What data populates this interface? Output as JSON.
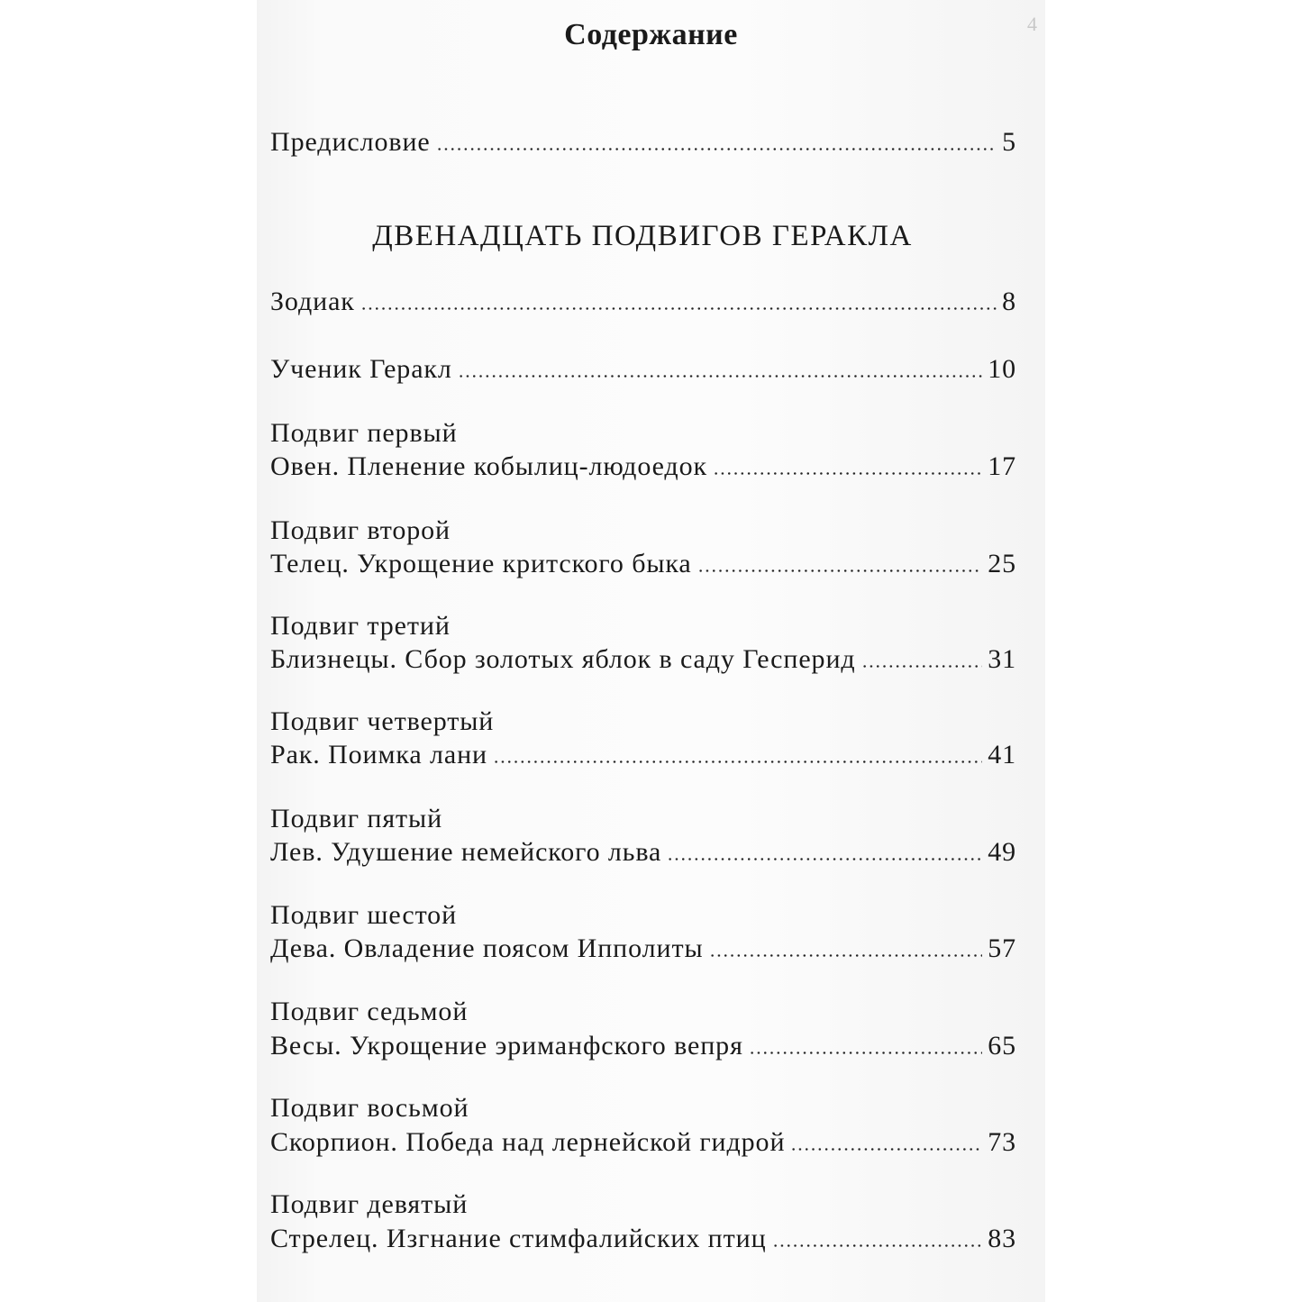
{
  "page_number": "4",
  "title": "Содержание",
  "section_title": "ДВЕНАДЦАТЬ ПОДВИГОВ ГЕРАКЛА",
  "entries": [
    {
      "heading": "",
      "title": "Предисловие",
      "page": "5"
    },
    {
      "heading": "",
      "title": "Зодиак",
      "page": "8"
    },
    {
      "heading": "",
      "title": "Ученик Геракл",
      "page": "10"
    },
    {
      "heading": "Подвиг первый",
      "title": "Овен. Пленение кобылиц-людоедок",
      "page": "17"
    },
    {
      "heading": "Подвиг второй",
      "title": "Телец. Укрощение критского быка",
      "page": "25"
    },
    {
      "heading": "Подвиг третий",
      "title": "Близнецы. Сбор золотых яблок в саду Гесперид",
      "page": "31"
    },
    {
      "heading": "Подвиг четвертый",
      "title": "Рак. Поимка лани",
      "page": "41"
    },
    {
      "heading": "Подвиг пятый",
      "title": "Лев. Удушение немейского льва",
      "page": "49"
    },
    {
      "heading": "Подвиг шестой",
      "title": "Дева. Овладение поясом Ипполиты",
      "page": "57"
    },
    {
      "heading": "Подвиг седьмой",
      "title": "Весы. Укрощение эриманфского вепря",
      "page": "65"
    },
    {
      "heading": "Подвиг восьмой",
      "title": "Скорпион. Победа над лернейской гидрой",
      "page": "73"
    },
    {
      "heading": "Подвиг девятый",
      "title": "Стрелец. Изгнание стимфалийских птиц",
      "page": "83"
    }
  ]
}
